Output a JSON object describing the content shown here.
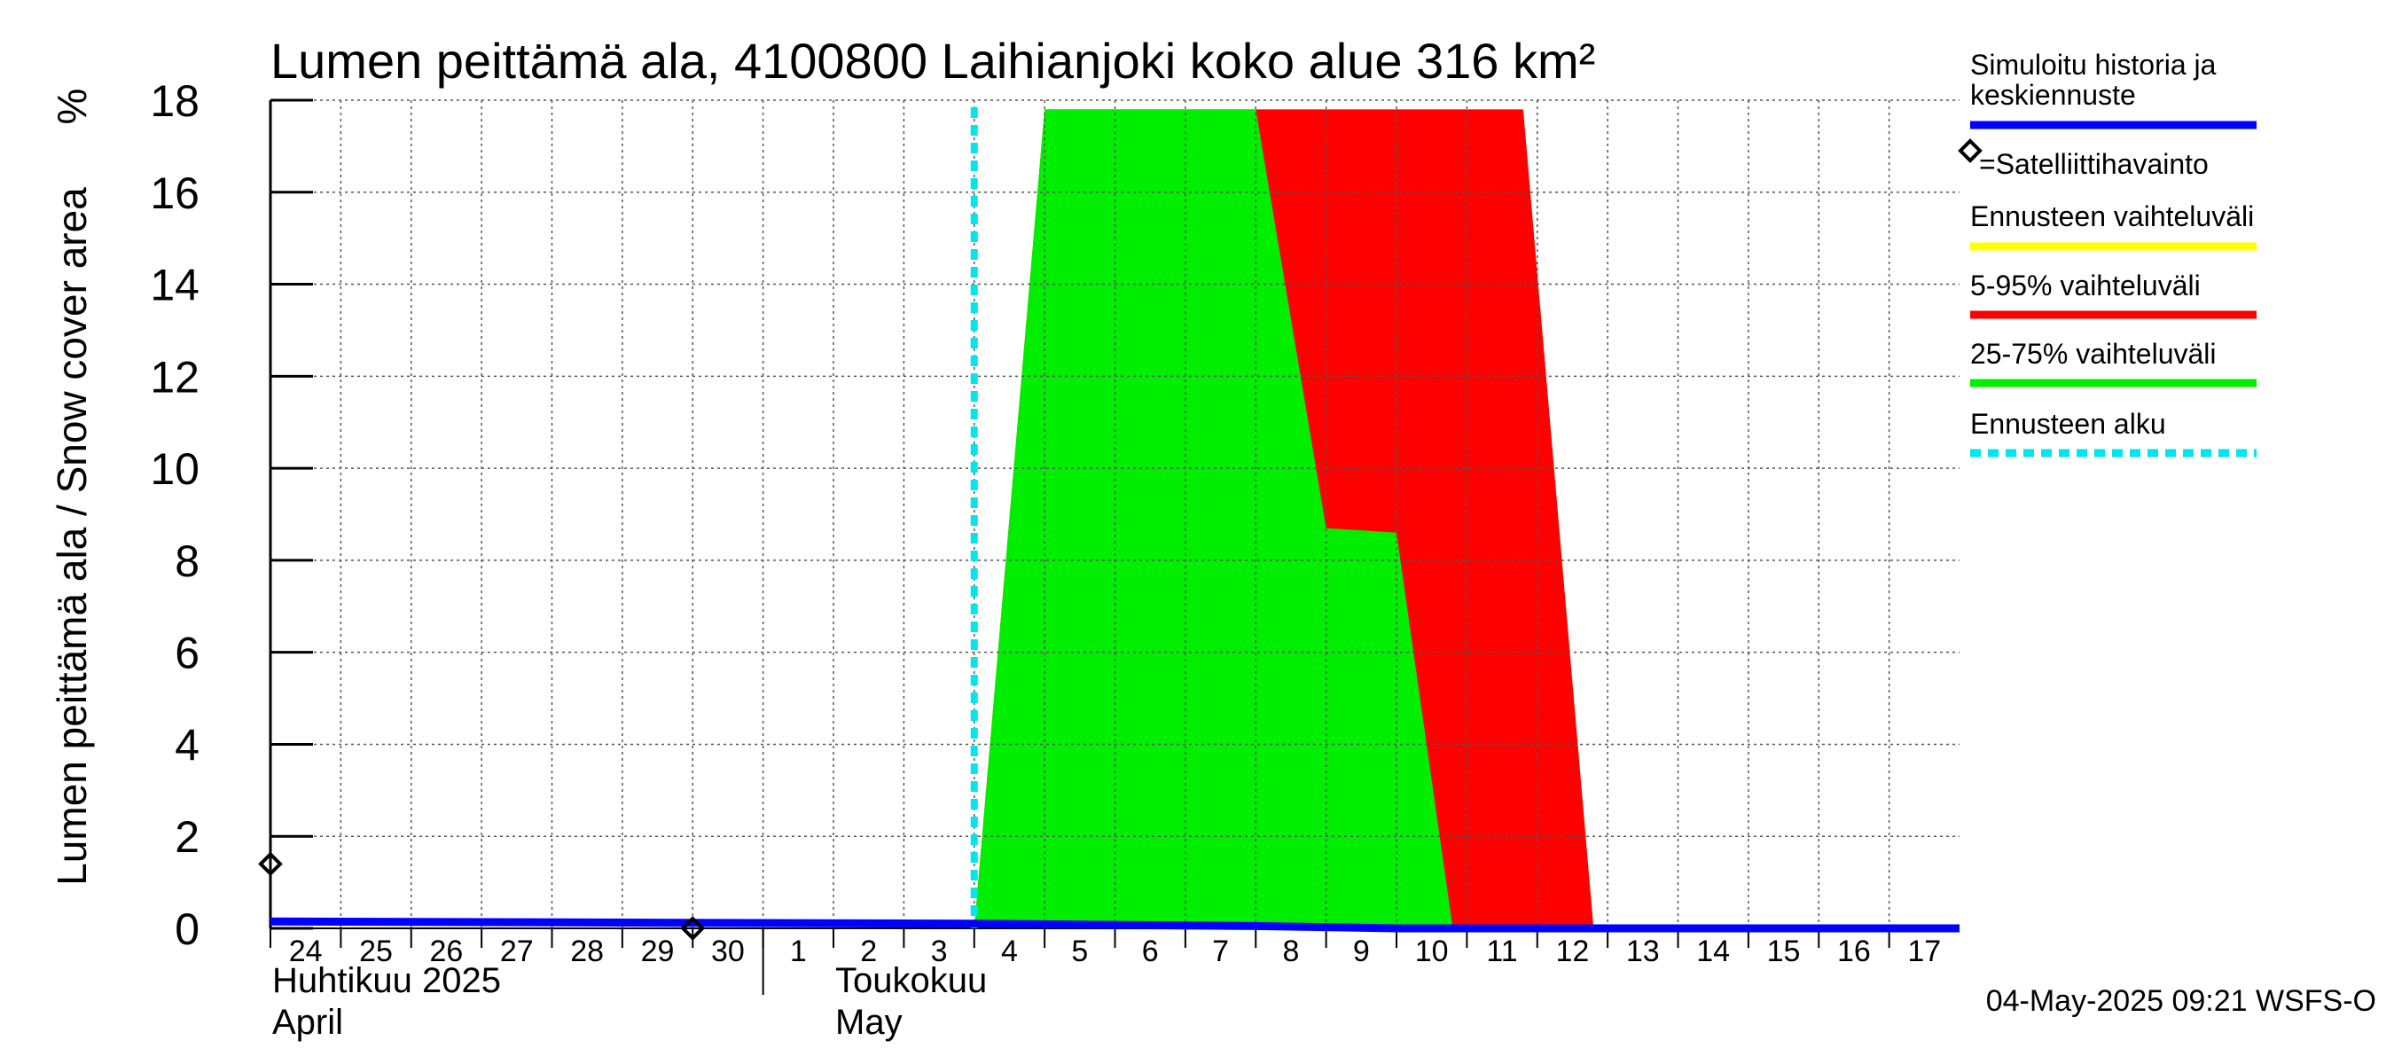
{
  "chart_data": {
    "type": "area",
    "title": "Lumen peittämä ala, 4100800 Laihianjoki koko alue 316 km²",
    "ylabel": "Lumen peittämä ala / Snow cover area",
    "yunit": "%",
    "ylim": [
      0,
      18
    ],
    "yticks": [
      0,
      2,
      4,
      6,
      8,
      10,
      12,
      14,
      16,
      18
    ],
    "xlim": [
      0,
      24
    ],
    "xtick_labels": [
      "24",
      "25",
      "26",
      "27",
      "28",
      "29",
      "30",
      "1",
      "2",
      "3",
      "4",
      "5",
      "6",
      "7",
      "8",
      "9",
      "10",
      "11",
      "12",
      "13",
      "14",
      "15",
      "16",
      "17"
    ],
    "month_labels": [
      {
        "line1": "Huhtikuu  2025",
        "line2": "April",
        "x": 0
      },
      {
        "line1": "Toukokuu",
        "line2": "May",
        "x": 8
      }
    ],
    "month_separator_x": 7.0,
    "grid": true,
    "forecast_start_x": 10.0,
    "bands": [
      {
        "name": "Ennusteen vaihteluväli",
        "color": "#ffff00",
        "upper": [
          [
            10.0,
            0
          ],
          [
            11.0,
            17.8
          ],
          [
            17.8,
            17.8
          ],
          [
            18.8,
            0
          ]
        ],
        "lower": []
      },
      {
        "name": "5-95% vaihteluväli",
        "color": "#ff0000",
        "upper": [
          [
            10.0,
            0
          ],
          [
            11.0,
            17.8
          ],
          [
            17.8,
            17.8
          ],
          [
            18.8,
            0
          ]
        ],
        "lower": []
      },
      {
        "name": "25-75% vaihteluväli",
        "color": "#00ee00",
        "upper": [
          [
            10.0,
            0
          ],
          [
            11.0,
            17.8
          ],
          [
            14.0,
            17.8
          ],
          [
            15.0,
            8.7
          ],
          [
            16.0,
            8.6
          ],
          [
            16.8,
            0
          ]
        ],
        "lower": []
      }
    ],
    "series": [
      {
        "name": "Simuloitu historia ja keskiennuste",
        "color": "#0000ff",
        "x": [
          0,
          10,
          14,
          16,
          24
        ],
        "y": [
          0.15,
          0.1,
          0.05,
          0,
          0
        ]
      }
    ],
    "satellite_observations": [
      {
        "x": 0.0,
        "y": 1.4
      },
      {
        "x": 6.0,
        "y": 0.0
      }
    ],
    "legend": [
      {
        "label": "Simuloitu historia ja keskiennuste",
        "color": "#0000ff",
        "style": "solid"
      },
      {
        "label": "=Satelliittihavainto",
        "color": "#000000",
        "style": "diamond"
      },
      {
        "label": "Ennusteen vaihteluväli",
        "color": "#ffff00",
        "style": "solid"
      },
      {
        "label": "5-95% vaihteluväli",
        "color": "#ff0000",
        "style": "solid"
      },
      {
        "label": "25-75% vaihteluväli",
        "color": "#00ee00",
        "style": "solid"
      },
      {
        "label": "Ennusteen alku",
        "color": "#00e5ee",
        "style": "dashed"
      }
    ],
    "timestamp": "04-May-2025 09:21 WSFS-O"
  }
}
